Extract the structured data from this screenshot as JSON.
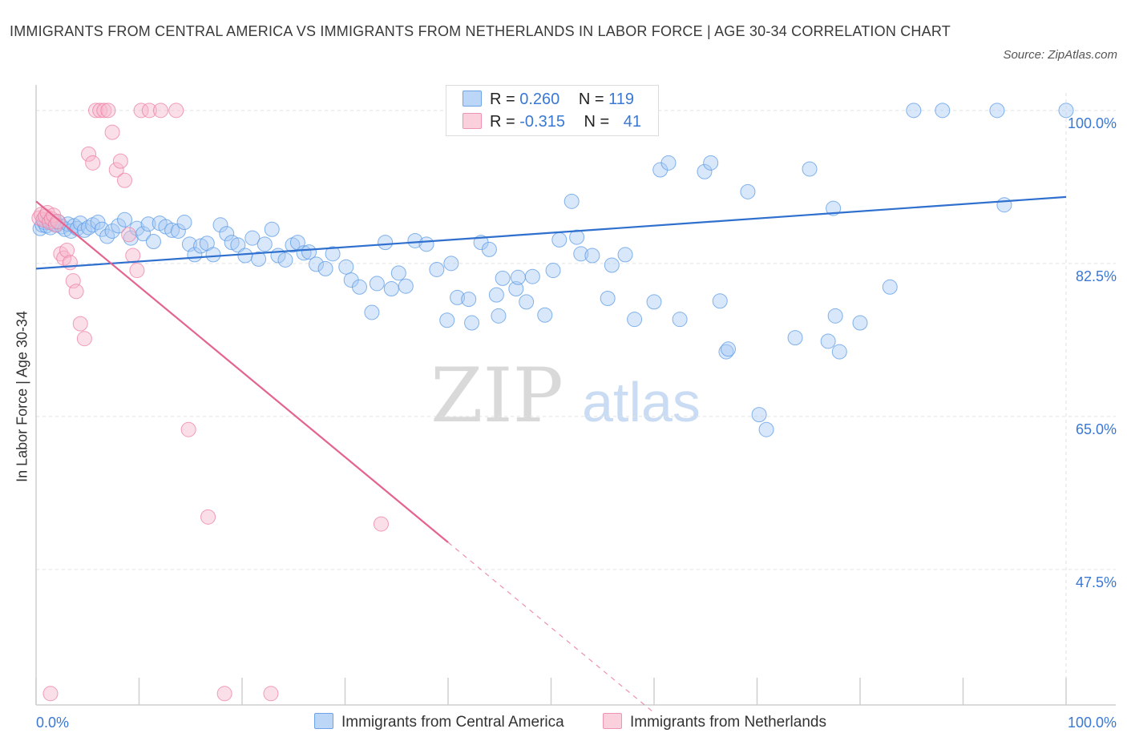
{
  "title": "IMMIGRANTS FROM CENTRAL AMERICA VS IMMIGRANTS FROM NETHERLANDS IN LABOR FORCE | AGE 30-34 CORRELATION CHART",
  "source": "Source: ZipAtlas.com",
  "watermark": {
    "zip": "ZIP",
    "atlas": "atlas"
  },
  "legend": {
    "r_label": "R =",
    "n_label": "N =",
    "entries": [
      {
        "r": "0.260",
        "n": "119",
        "color": "#a9c9f3"
      },
      {
        "r": "-0.315",
        "n": "41",
        "color": "#f6b8cb"
      }
    ]
  },
  "chart_data": {
    "type": "scatter",
    "xlabel": "",
    "ylabel": "In Labor Force | Age 30-34",
    "xlim": [
      0,
      100
    ],
    "ylim": [
      32,
      102
    ],
    "x_tick_labels": [
      {
        "value": 0,
        "label": "0.0%"
      },
      {
        "value": 100,
        "label": "100.0%"
      }
    ],
    "y_tick_labels": [
      {
        "value": 100,
        "label": "100.0%"
      },
      {
        "value": 82.5,
        "label": "82.5%"
      },
      {
        "value": 65,
        "label": "65.0%"
      },
      {
        "value": 47.5,
        "label": "47.5%"
      }
    ],
    "grid": true,
    "series": [
      {
        "name": "Immigrants from Central America",
        "color": "#5b9be6",
        "fill": "#a9c9f3",
        "trend": {
          "x": [
            0,
            100
          ],
          "y": [
            81.9,
            90.1
          ],
          "color": "#2f6fce"
        },
        "points": [
          [
            0.4,
            86.5
          ],
          [
            0.6,
            86.9
          ],
          [
            0.8,
            87.2
          ],
          [
            1.0,
            86.8
          ],
          [
            1.2,
            87.4
          ],
          [
            1.4,
            86.6
          ],
          [
            1.6,
            87.1
          ],
          [
            1.8,
            87.3
          ],
          [
            2.0,
            86.9
          ],
          [
            2.2,
            87.2
          ],
          [
            2.5,
            86.7
          ],
          [
            2.8,
            86.4
          ],
          [
            3.1,
            87.0
          ],
          [
            3.4,
            86.2
          ],
          [
            3.7,
            86.8
          ],
          [
            4.0,
            86.5
          ],
          [
            4.3,
            87.1
          ],
          [
            4.7,
            86.3
          ],
          [
            5.1,
            86.6
          ],
          [
            5.5,
            86.9
          ],
          [
            6.0,
            87.2
          ],
          [
            6.4,
            86.4
          ],
          [
            6.9,
            85.6
          ],
          [
            7.4,
            86.2
          ],
          [
            8.0,
            86.8
          ],
          [
            8.6,
            87.5
          ],
          [
            9.2,
            85.4
          ],
          [
            9.8,
            86.5
          ],
          [
            10.4,
            85.9
          ],
          [
            10.9,
            87.0
          ],
          [
            11.4,
            85.0
          ],
          [
            12.0,
            87.1
          ],
          [
            12.6,
            86.7
          ],
          [
            13.2,
            86.3
          ],
          [
            13.8,
            86.2
          ],
          [
            14.4,
            87.2
          ],
          [
            14.9,
            84.7
          ],
          [
            15.4,
            83.5
          ],
          [
            16.0,
            84.5
          ],
          [
            16.6,
            84.8
          ],
          [
            17.2,
            83.5
          ],
          [
            17.9,
            86.9
          ],
          [
            18.5,
            85.9
          ],
          [
            19.0,
            84.9
          ],
          [
            19.6,
            84.6
          ],
          [
            20.3,
            83.4
          ],
          [
            21.0,
            85.4
          ],
          [
            21.6,
            83.0
          ],
          [
            22.2,
            84.7
          ],
          [
            22.9,
            86.4
          ],
          [
            23.5,
            83.4
          ],
          [
            24.2,
            82.9
          ],
          [
            24.9,
            84.6
          ],
          [
            25.4,
            84.9
          ],
          [
            26.0,
            83.7
          ],
          [
            26.5,
            83.8
          ],
          [
            27.2,
            82.4
          ],
          [
            28.1,
            81.9
          ],
          [
            28.8,
            83.6
          ],
          [
            30.1,
            82.1
          ],
          [
            30.6,
            80.6
          ],
          [
            31.4,
            79.8
          ],
          [
            32.6,
            76.9
          ],
          [
            33.1,
            80.2
          ],
          [
            33.9,
            84.9
          ],
          [
            34.5,
            79.6
          ],
          [
            35.2,
            81.4
          ],
          [
            35.9,
            79.9
          ],
          [
            36.8,
            85.1
          ],
          [
            37.9,
            84.7
          ],
          [
            38.9,
            81.8
          ],
          [
            39.9,
            76.0
          ],
          [
            40.3,
            82.5
          ],
          [
            40.9,
            78.6
          ],
          [
            42.0,
            78.4
          ],
          [
            42.3,
            75.7
          ],
          [
            43.2,
            84.9
          ],
          [
            44.0,
            84.1
          ],
          [
            44.7,
            78.9
          ],
          [
            44.9,
            76.5
          ],
          [
            45.3,
            80.8
          ],
          [
            46.6,
            79.6
          ],
          [
            46.8,
            80.9
          ],
          [
            47.6,
            78.1
          ],
          [
            48.2,
            81.0
          ],
          [
            49.4,
            76.6
          ],
          [
            50.2,
            81.7
          ],
          [
            50.8,
            85.2
          ],
          [
            52.0,
            89.6
          ],
          [
            52.5,
            85.5
          ],
          [
            52.9,
            83.6
          ],
          [
            54.0,
            83.4
          ],
          [
            55.5,
            78.5
          ],
          [
            55.9,
            82.3
          ],
          [
            57.2,
            83.5
          ],
          [
            58.1,
            76.1
          ],
          [
            60.0,
            78.1
          ],
          [
            60.6,
            93.2
          ],
          [
            61.4,
            94.0
          ],
          [
            62.5,
            76.1
          ],
          [
            64.9,
            93.0
          ],
          [
            65.5,
            94.0
          ],
          [
            66.4,
            78.2
          ],
          [
            67.0,
            72.4
          ],
          [
            67.2,
            72.7
          ],
          [
            69.1,
            90.7
          ],
          [
            70.2,
            65.2
          ],
          [
            70.9,
            63.5
          ],
          [
            73.7,
            74.0
          ],
          [
            75.1,
            93.3
          ],
          [
            76.9,
            73.6
          ],
          [
            77.4,
            88.8
          ],
          [
            77.6,
            76.5
          ],
          [
            78.0,
            72.4
          ],
          [
            80.0,
            75.7
          ],
          [
            82.9,
            79.8
          ],
          [
            85.2,
            100.0
          ],
          [
            88.0,
            100.0
          ],
          [
            93.3,
            100.0
          ],
          [
            100.0,
            100.0
          ],
          [
            94.0,
            89.2
          ],
          [
            46.0,
            100.0
          ],
          [
            48.0,
            100.0
          ]
        ]
      },
      {
        "name": "Immigrants from Netherlands",
        "color": "#ec7fa3",
        "fill": "#f6b8cb",
        "trend": {
          "x": [
            0,
            40
          ],
          "y": [
            89.6,
            50.6
          ],
          "color": "#e4638f",
          "dashed_to_x": 60,
          "dashed_to_y": 31.1
        },
        "points": [
          [
            0.3,
            87.7
          ],
          [
            0.5,
            88.1
          ],
          [
            0.7,
            87.5
          ],
          [
            0.9,
            87.9
          ],
          [
            1.1,
            88.3
          ],
          [
            1.3,
            87.2
          ],
          [
            1.5,
            87.6
          ],
          [
            1.7,
            88.0
          ],
          [
            1.9,
            86.9
          ],
          [
            2.1,
            87.3
          ],
          [
            2.4,
            83.6
          ],
          [
            2.7,
            83.1
          ],
          [
            3.0,
            84.0
          ],
          [
            3.3,
            82.6
          ],
          [
            3.6,
            80.5
          ],
          [
            3.9,
            79.3
          ],
          [
            4.3,
            75.6
          ],
          [
            4.7,
            73.9
          ],
          [
            5.1,
            95.0
          ],
          [
            5.5,
            94.0
          ],
          [
            5.8,
            100.0
          ],
          [
            6.2,
            100.0
          ],
          [
            6.6,
            100.0
          ],
          [
            7.0,
            100.0
          ],
          [
            7.4,
            97.5
          ],
          [
            7.8,
            93.2
          ],
          [
            8.2,
            94.2
          ],
          [
            8.6,
            92.0
          ],
          [
            9.0,
            85.8
          ],
          [
            9.4,
            83.4
          ],
          [
            9.8,
            81.7
          ],
          [
            10.2,
            100.0
          ],
          [
            11.0,
            100.0
          ],
          [
            12.1,
            100.0
          ],
          [
            13.6,
            100.0
          ],
          [
            14.8,
            63.5
          ],
          [
            16.7,
            53.5
          ],
          [
            18.3,
            33.3
          ],
          [
            22.8,
            33.3
          ],
          [
            33.5,
            52.7
          ],
          [
            1.4,
            33.3
          ]
        ]
      }
    ]
  }
}
